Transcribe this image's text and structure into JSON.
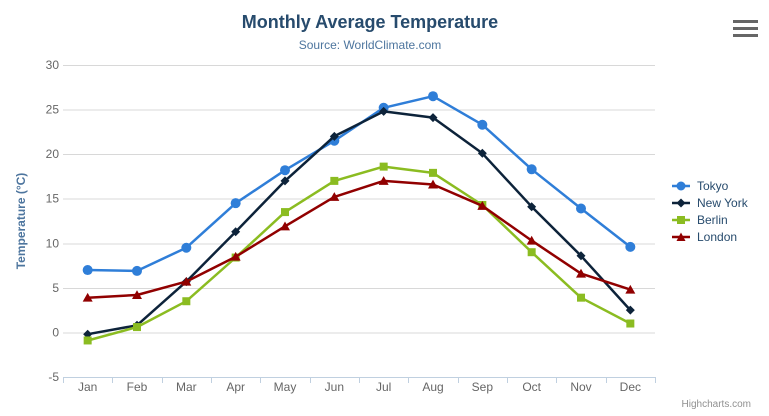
{
  "chart_data": {
    "type": "line",
    "title": "Monthly Average Temperature",
    "subtitle": "Source: WorldClimate.com",
    "categories": [
      "Jan",
      "Feb",
      "Mar",
      "Apr",
      "May",
      "Jun",
      "Jul",
      "Aug",
      "Sep",
      "Oct",
      "Nov",
      "Dec"
    ],
    "xlabel": "",
    "ylabel": "Temperature (°C)",
    "ylim": [
      -5,
      30
    ],
    "yticks": [
      -5,
      0,
      5,
      10,
      15,
      20,
      25,
      30
    ],
    "grid": "horizontal",
    "legend_position": "right",
    "series": [
      {
        "name": "Tokyo",
        "color": "#2f7ed8",
        "marker": "circle",
        "values": [
          7.0,
          6.9,
          9.5,
          14.5,
          18.2,
          21.5,
          25.2,
          26.5,
          23.3,
          18.3,
          13.9,
          9.6
        ]
      },
      {
        "name": "New York",
        "color": "#0d233a",
        "marker": "diamond",
        "values": [
          -0.2,
          0.8,
          5.7,
          11.3,
          17.0,
          22.0,
          24.8,
          24.1,
          20.1,
          14.1,
          8.6,
          2.5
        ]
      },
      {
        "name": "Berlin",
        "color": "#8bbc21",
        "marker": "square",
        "values": [
          -0.9,
          0.6,
          3.5,
          8.4,
          13.5,
          17.0,
          18.6,
          17.9,
          14.3,
          9.0,
          3.9,
          1.0
        ]
      },
      {
        "name": "London",
        "color": "#910000",
        "marker": "triangle",
        "values": [
          3.9,
          4.2,
          5.7,
          8.5,
          11.9,
          15.2,
          17.0,
          16.6,
          14.2,
          10.3,
          6.6,
          4.8
        ]
      }
    ]
  },
  "credits": {
    "label": "Highcharts.com"
  },
  "colors": {
    "title": "#274b6d",
    "subtitle": "#4d759e",
    "axis_title": "#4d759e",
    "axis_label": "#666666",
    "grid_line": "#d8d8d8",
    "axis_line": "#c0d0e0",
    "tick": "#c0d0e0",
    "legend_text": "#274b6d",
    "credits_text": "#909090",
    "menu_icon": "#666666"
  }
}
